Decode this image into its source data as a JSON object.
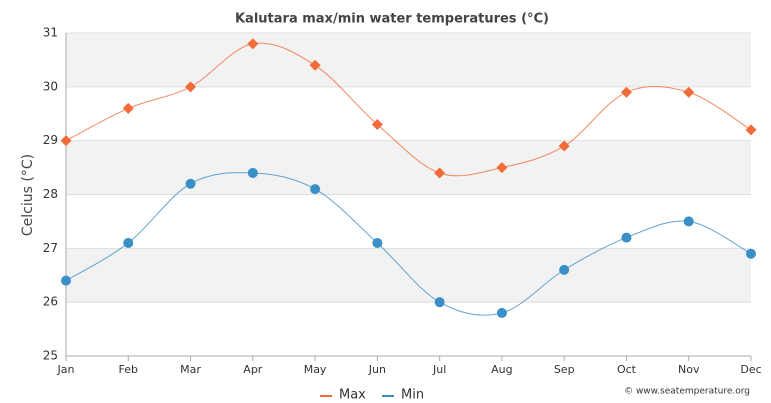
{
  "chart_data": {
    "type": "line",
    "title": "Kalutara max/min water temperatures (°C)",
    "y_label": "Celcius (°C)",
    "credit": "© www.seatemperature.org",
    "categories": [
      "Jan",
      "Feb",
      "Mar",
      "Apr",
      "May",
      "Jun",
      "Jul",
      "Aug",
      "Sep",
      "Oct",
      "Nov",
      "Dec"
    ],
    "series": [
      {
        "name": "Max",
        "color": "#f26b38",
        "marker": "diamond",
        "values": [
          29.0,
          29.6,
          30.0,
          30.8,
          30.4,
          29.3,
          28.4,
          28.5,
          28.9,
          29.9,
          29.9,
          29.2
        ]
      },
      {
        "name": "Min",
        "color": "#3a8fc7",
        "marker": "circle",
        "values": [
          26.4,
          27.1,
          28.2,
          28.4,
          28.1,
          27.1,
          26.0,
          25.8,
          26.6,
          27.2,
          27.5,
          26.9
        ]
      }
    ],
    "ylim": [
      25,
      31
    ],
    "yticks": [
      25,
      26,
      27,
      28,
      29,
      30,
      31
    ],
    "grid": true,
    "legend": "bottom"
  }
}
